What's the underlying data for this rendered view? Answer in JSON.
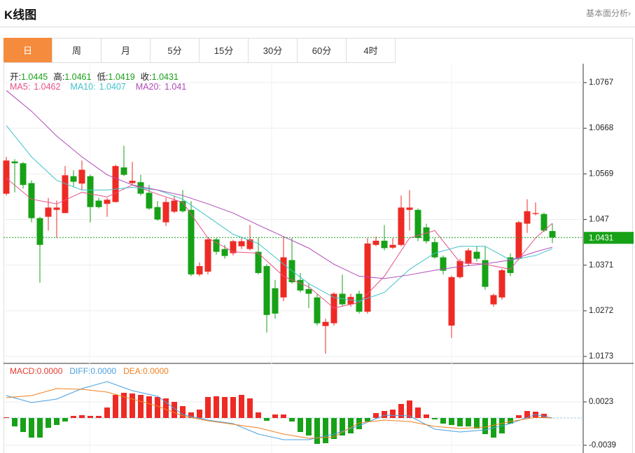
{
  "header": {
    "title": "K线图",
    "link": "基本面分析›"
  },
  "tabs": {
    "items": [
      "日",
      "周",
      "月",
      "5分",
      "15分",
      "30分",
      "60分",
      "4时"
    ],
    "active": 0,
    "active_color": "#f58b3c"
  },
  "chart_data": [
    {
      "type": "candlestick",
      "info": [
        {
          "label": "开:",
          "value": 1.0445
        },
        {
          "label": "高:",
          "value": 1.0461
        },
        {
          "label": "低:",
          "value": 1.0419
        },
        {
          "label": "收:",
          "value": 1.0431
        }
      ],
      "up_color": "#ee2a24",
      "down_color": "#17a117",
      "open": [
        1.0526,
        1.0596,
        1.0592,
        1.0549,
        1.0473,
        1.0476,
        1.0491,
        1.0484,
        1.0564,
        1.0548,
        1.0564,
        1.0511,
        1.0504,
        1.0508,
        1.0583,
        1.0549,
        1.0551,
        1.0528,
        1.0497,
        1.0464,
        1.0487,
        1.051,
        1.0491,
        1.0351,
        1.0357,
        1.0427,
        1.0406,
        1.0397,
        1.0412,
        1.0406,
        1.04,
        1.0369,
        1.0321,
        1.0301,
        1.0382,
        1.0339,
        1.0319,
        1.0301,
        1.0239,
        1.0245,
        1.0309,
        1.0286,
        1.0309,
        1.027,
        1.0415,
        1.0424,
        1.0409,
        1.0415,
        1.0491,
        1.0491,
        1.0453,
        1.0421,
        1.0388,
        1.024,
        1.0345,
        1.0374,
        1.04,
        1.0382,
        1.0286,
        1.0301,
        1.0388,
        1.0385,
        1.0461,
        1.0482,
        1.0482,
        1.0445
      ],
      "high": [
        1.0606,
        1.0601,
        1.0595,
        1.0555,
        1.0476,
        1.0517,
        1.0511,
        1.0586,
        1.0577,
        1.0598,
        1.0567,
        1.0517,
        1.0517,
        1.0589,
        1.063,
        1.0595,
        1.0567,
        1.0545,
        1.051,
        1.0517,
        1.0522,
        1.0534,
        1.051,
        1.0377,
        1.043,
        1.043,
        1.0415,
        1.0426,
        1.043,
        1.0458,
        1.043,
        1.0373,
        1.0339,
        1.0433,
        1.043,
        1.0354,
        1.0331,
        1.0309,
        1.0255,
        1.0312,
        1.035,
        1.0309,
        1.0316,
        1.043,
        1.0433,
        1.0458,
        1.043,
        1.0522,
        1.0534,
        1.0494,
        1.0461,
        1.043,
        1.0392,
        1.0348,
        1.0385,
        1.0408,
        1.0412,
        1.0412,
        1.0309,
        1.0363,
        1.0397,
        1.0467,
        1.0514,
        1.0507,
        1.0485,
        1.0461
      ],
      "low": [
        1.0522,
        1.0529,
        1.0537,
        1.0464,
        1.0333,
        1.0446,
        1.043,
        1.0484,
        1.054,
        1.0534,
        1.0464,
        1.0494,
        1.0476,
        1.0507,
        1.0564,
        1.0546,
        1.0522,
        1.0491,
        1.0467,
        1.0456,
        1.0484,
        1.0485,
        1.0347,
        1.0347,
        1.0351,
        1.0394,
        1.0385,
        1.0392,
        1.0406,
        1.0403,
        1.0351,
        1.0225,
        1.0255,
        1.0293,
        1.0331,
        1.0312,
        1.0278,
        1.024,
        1.0179,
        1.024,
        1.0281,
        1.0281,
        1.0266,
        1.0266,
        1.0412,
        1.0403,
        1.0406,
        1.0412,
        1.0446,
        1.0423,
        1.0418,
        1.0385,
        1.0351,
        1.0213,
        1.0342,
        1.0369,
        1.0379,
        1.0318,
        1.0281,
        1.0296,
        1.0347,
        1.0382,
        1.0441,
        1.0479,
        1.0443,
        1.0419
      ],
      "close": [
        1.0598,
        1.0592,
        1.0545,
        1.0473,
        1.0415,
        1.0496,
        1.0496,
        1.0566,
        1.0552,
        1.0578,
        1.0497,
        1.0497,
        1.0513,
        1.0586,
        1.0567,
        1.0554,
        1.0526,
        1.0494,
        1.047,
        1.0508,
        1.0511,
        1.0488,
        1.0351,
        1.0369,
        1.0427,
        1.04,
        1.0391,
        1.0423,
        1.0423,
        1.0427,
        1.0354,
        1.0263,
        1.0266,
        1.0388,
        1.0334,
        1.0316,
        1.0309,
        1.0245,
        1.0248,
        1.0309,
        1.0286,
        1.0302,
        1.027,
        1.0418,
        1.0424,
        1.0408,
        1.0415,
        1.0496,
        1.0496,
        1.043,
        1.0423,
        1.0388,
        1.0359,
        1.0345,
        1.038,
        1.0403,
        1.0385,
        1.0324,
        1.0306,
        1.036,
        1.0354,
        1.0464,
        1.0488,
        1.0484,
        1.0446,
        1.0431
      ],
      "series": [
        {
          "name": "MA5:",
          "readout": 1.0462,
          "color": "#e5508a",
          "x": [
            0,
            3,
            6,
            9,
            12,
            15,
            18,
            21,
            24,
            27,
            30,
            33,
            36,
            39,
            42,
            45,
            48,
            51,
            54,
            57,
            60,
            63,
            65
          ],
          "values": [
            1.056,
            1.0514,
            1.0504,
            1.0529,
            1.0519,
            1.0545,
            1.0525,
            1.0507,
            1.043,
            1.04,
            1.0397,
            1.0347,
            1.0324,
            1.0278,
            1.029,
            1.0347,
            1.043,
            1.0446,
            1.0377,
            1.0373,
            1.0362,
            1.043,
            1.0462
          ]
        },
        {
          "name": "MA10:",
          "readout": 1.0407,
          "color": "#3ec3cc",
          "x": [
            0,
            3,
            6,
            9,
            12,
            15,
            18,
            21,
            24,
            27,
            30,
            33,
            36,
            39,
            42,
            45,
            48,
            51,
            54,
            57,
            60,
            63,
            65
          ],
          "values": [
            1.0674,
            1.0606,
            1.0555,
            1.0534,
            1.0534,
            1.054,
            1.0534,
            1.0514,
            1.0476,
            1.0438,
            1.0418,
            1.0373,
            1.0331,
            1.0301,
            1.0293,
            1.0312,
            1.0362,
            1.0397,
            1.0412,
            1.0412,
            1.0382,
            1.0392,
            1.0407
          ]
        },
        {
          "name": "MA20:",
          "readout": 1.041,
          "color": "#b04ab8",
          "x": [
            0,
            3,
            6,
            9,
            12,
            15,
            18,
            21,
            24,
            27,
            30,
            33,
            36,
            39,
            42,
            45,
            48,
            51,
            54,
            57,
            60,
            63,
            65
          ],
          "values": [
            1.075,
            1.0705,
            1.0651,
            1.0606,
            1.0567,
            1.0545,
            1.0534,
            1.0522,
            1.0504,
            1.0484,
            1.0458,
            1.0433,
            1.0408,
            1.0373,
            1.0347,
            1.0342,
            1.035,
            1.036,
            1.0368,
            1.0374,
            1.0382,
            1.04,
            1.041
          ]
        }
      ],
      "ylim": [
        1.0161,
        1.0808
      ],
      "yticks": [
        1.0173,
        1.0272,
        1.0371,
        1.047,
        1.0569,
        1.0668,
        1.0767
      ],
      "grid": true
    },
    {
      "type": "macd",
      "histogram": {
        "name": "MACD:",
        "readout": "0.0000",
        "color": "#e33b2e",
        "up_color": "#ee2a24",
        "down_color": "#17a117",
        "values": [
          0.0001,
          -0.0012,
          -0.002,
          -0.0028,
          -0.0028,
          -0.0014,
          -0.001,
          -0.0005,
          0.0003,
          0.0004,
          0.0003,
          0.0003,
          0.0015,
          0.0033,
          0.0036,
          0.0035,
          0.0033,
          0.0031,
          0.003,
          0.0028,
          0.0023,
          0.0017,
          0.0008,
          0.0012,
          0.003,
          0.0031,
          0.003,
          0.003,
          0.0033,
          0.0028,
          0.0008,
          -0.0004,
          0.0005,
          0.0005,
          -0.0005,
          -0.002,
          -0.0025,
          -0.0037,
          -0.0036,
          -0.003,
          -0.0025,
          -0.0022,
          -0.0016,
          -0.0005,
          0.0007,
          0.001,
          0.0012,
          0.002,
          0.0025,
          0.0015,
          0.0005,
          -0.0002,
          -0.0008,
          -0.001,
          -0.0012,
          -0.0012,
          -0.0015,
          -0.0023,
          -0.0028,
          -0.0022,
          -0.0008,
          0.0004,
          0.001,
          0.0009,
          0.0006,
          0.0
        ]
      },
      "series": [
        {
          "name": "DIFF:",
          "readout": "0.0000",
          "color": "#4a9fe0",
          "x": [
            0,
            3,
            6,
            9,
            12,
            15,
            18,
            21,
            24,
            27,
            30,
            33,
            36,
            39,
            42,
            45,
            48,
            51,
            54,
            57,
            60,
            63,
            65
          ],
          "values": [
            0.0032,
            0.0022,
            0.0027,
            0.0042,
            0.0052,
            0.0039,
            0.0031,
            0.0005,
            -0.0003,
            -0.0008,
            -0.0023,
            -0.0031,
            -0.0031,
            -0.0023,
            -0.0011,
            0.0004,
            0.0003,
            -0.0016,
            -0.002,
            -0.0017,
            -0.0008,
            0.0005,
            0.0
          ]
        },
        {
          "name": "DEA:",
          "readout": "0.0000",
          "color": "#f0801e",
          "x": [
            0,
            3,
            6,
            9,
            12,
            15,
            18,
            21,
            24,
            27,
            30,
            33,
            36,
            39,
            42,
            45,
            48,
            51,
            54,
            57,
            60,
            63,
            65
          ],
          "values": [
            0.0029,
            0.0032,
            0.0042,
            0.0041,
            0.0037,
            0.0027,
            0.0017,
            0.0003,
            -0.0004,
            -0.0009,
            -0.0014,
            -0.0023,
            -0.0029,
            -0.0027,
            -0.0007,
            -0.0003,
            -0.0005,
            -0.0012,
            -0.0015,
            -0.0013,
            -0.0005,
            0.0001,
            0.0
          ]
        }
      ],
      "ylim": [
        -0.005,
        0.0077
      ],
      "yticks": [
        -0.0039,
        0.0023
      ],
      "grid": true
    }
  ]
}
